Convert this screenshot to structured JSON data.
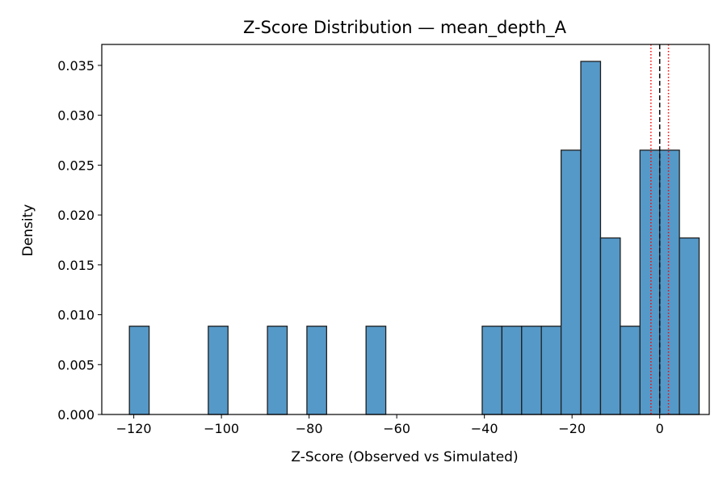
{
  "chart_data": {
    "type": "bar",
    "title": "Z-Score Distribution — mean_depth_A",
    "xlabel": "Z-Score (Observed vs Simulated)",
    "ylabel": "Density",
    "xlim": [
      -127.3,
      11.3
    ],
    "ylim": [
      0,
      0.0371
    ],
    "bin_width": 4.5,
    "bins": [
      {
        "x0": -121.0,
        "x1": -116.5,
        "density": 0.00885
      },
      {
        "x0": -103.0,
        "x1": -98.5,
        "density": 0.00885
      },
      {
        "x0": -89.5,
        "x1": -85.0,
        "density": 0.00885
      },
      {
        "x0": -80.5,
        "x1": -76.0,
        "density": 0.00885
      },
      {
        "x0": -67.0,
        "x1": -62.5,
        "density": 0.00885
      },
      {
        "x0": -40.5,
        "x1": -36.0,
        "density": 0.00885
      },
      {
        "x0": -36.0,
        "x1": -31.5,
        "density": 0.00885
      },
      {
        "x0": -31.5,
        "x1": -27.0,
        "density": 0.00885
      },
      {
        "x0": -27.0,
        "x1": -22.5,
        "density": 0.00885
      },
      {
        "x0": -22.5,
        "x1": -18.0,
        "density": 0.0265
      },
      {
        "x0": -18.0,
        "x1": -13.5,
        "density": 0.0354
      },
      {
        "x0": -13.5,
        "x1": -9.0,
        "density": 0.0177
      },
      {
        "x0": -9.0,
        "x1": -4.5,
        "density": 0.00885
      },
      {
        "x0": -4.5,
        "x1": 0.0,
        "density": 0.0265
      },
      {
        "x0": 0.0,
        "x1": 4.5,
        "density": 0.0265
      },
      {
        "x0": 4.5,
        "x1": 9.0,
        "density": 0.0177
      }
    ],
    "reference_lines": [
      {
        "x": 0,
        "style": "dashed",
        "color": "#000000"
      },
      {
        "x": -2,
        "style": "dotted",
        "color": "#ff0000"
      },
      {
        "x": 2,
        "style": "dotted",
        "color": "#ff0000"
      }
    ],
    "x_ticks": [
      {
        "value": -120,
        "label": "−120"
      },
      {
        "value": -100,
        "label": "−100"
      },
      {
        "value": -80,
        "label": "−80"
      },
      {
        "value": -60,
        "label": "−60"
      },
      {
        "value": -40,
        "label": "−40"
      },
      {
        "value": -20,
        "label": "−20"
      },
      {
        "value": 0,
        "label": "0"
      }
    ],
    "y_ticks": [
      {
        "value": 0.0,
        "label": "0.000"
      },
      {
        "value": 0.005,
        "label": "0.005"
      },
      {
        "value": 0.01,
        "label": "0.010"
      },
      {
        "value": 0.015,
        "label": "0.015"
      },
      {
        "value": 0.02,
        "label": "0.020"
      },
      {
        "value": 0.025,
        "label": "0.025"
      },
      {
        "value": 0.03,
        "label": "0.030"
      },
      {
        "value": 0.035,
        "label": "0.035"
      }
    ],
    "grid": false,
    "colors": {
      "bar_fill": "#5599c8",
      "bar_edge": "#1f1f1f"
    }
  }
}
